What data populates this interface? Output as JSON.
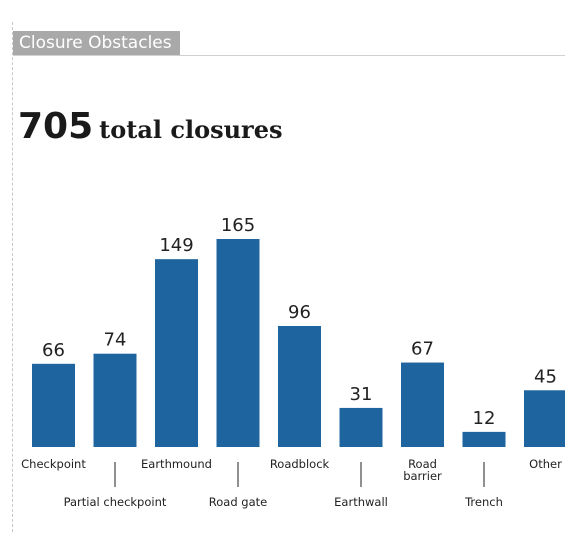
{
  "panel": {
    "title": "Closure Obstacles",
    "total_value": "705",
    "total_label": "total closures"
  },
  "chart_data": {
    "type": "bar",
    "title": "",
    "xlabel": "",
    "ylabel": "",
    "ylim": [
      0,
      165
    ],
    "grid": false,
    "categories": [
      "Checkpoint",
      "Partial checkpoint",
      "Earthmound",
      "Road gate",
      "Roadblock",
      "Earthwall",
      "Road barrier",
      "Trench",
      "Other"
    ],
    "label_lines": [
      [
        "Checkpoint"
      ],
      [
        "Partial checkpoint"
      ],
      [
        "Earthmound"
      ],
      [
        "Road gate"
      ],
      [
        "Roadblock"
      ],
      [
        "Earthwall"
      ],
      [
        "Road",
        "barrier"
      ],
      [
        "Trench"
      ],
      [
        "Other"
      ]
    ],
    "values": [
      66,
      74,
      149,
      165,
      96,
      31,
      67,
      12,
      45
    ],
    "colors": {
      "bar": "#1e65a0"
    }
  }
}
